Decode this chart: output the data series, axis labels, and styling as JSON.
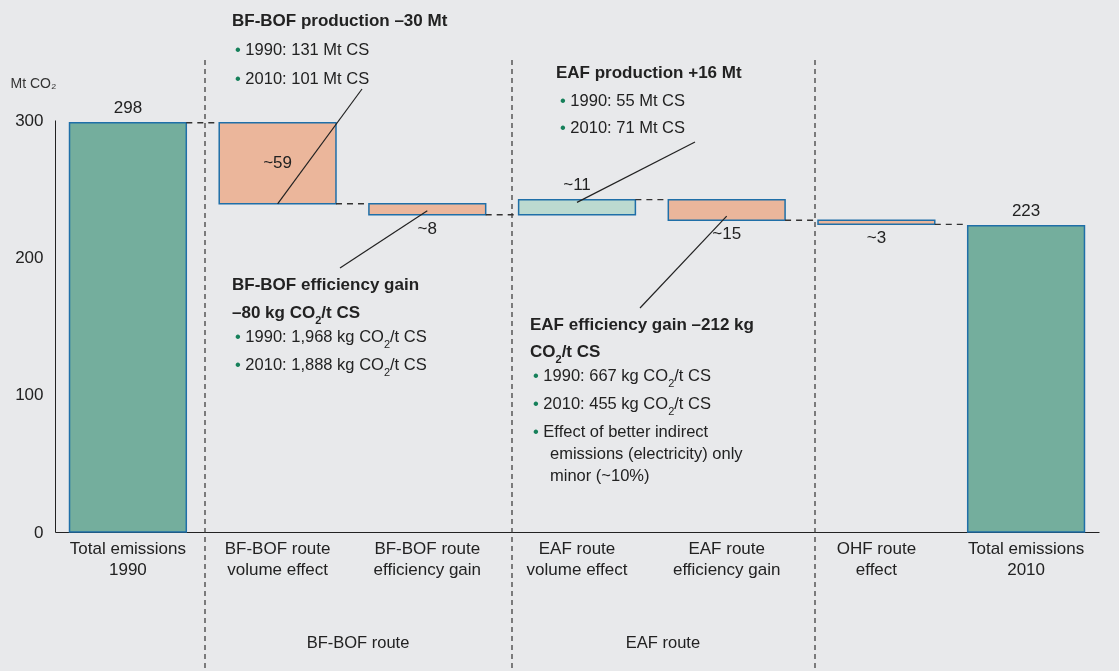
{
  "chart_data": {
    "type": "bar",
    "categories": [
      "Total emissions 1990",
      "BF-BOF route volume effect",
      "BF-BOF route efficiency gain",
      "EAF route volume effect",
      "EAF route efficiency gain",
      "OHF route effect",
      "Total emissions 2010"
    ],
    "values": [
      298,
      -59,
      -8,
      11,
      -15,
      -3,
      223
    ],
    "base": [
      0,
      298,
      239,
      231,
      242,
      227,
      0
    ],
    "colors": [
      "#74ae9d",
      "#ebb69b",
      "#ebb69b",
      "#bcdad0",
      "#ebb69b",
      "#ebb69b",
      "#74ae9d"
    ],
    "value_labels": [
      "298",
      "~59",
      "~8",
      "~11",
      "~15",
      "~3",
      "223"
    ],
    "ylabel": "Mt CO₂",
    "ylim": [
      0,
      300
    ],
    "yticks": [
      0,
      100,
      200,
      300
    ],
    "grid": false,
    "legend": false,
    "annotations": [
      "BF-BOF production –30 Mt",
      "• 1990: 131 Mt CS",
      {
        "text": "• 2010: 101 Mt CS",
        "x": "BF-BOF route volume effect",
        "y": 239
      },
      "EAF production +16 Mt",
      "• 1990: 55 Mt CS",
      {
        "text": "• 2010: 71 Mt CS",
        "x": "EAF route volume effect",
        "y": 240
      },
      {
        "text": "BF-BOF efficiency gain",
        "x": "BF-BOF route efficiency gain",
        "y": 234
      },
      "–80 kg CO$_{2}$/t CS",
      "• 1990: 1,968 kg CO$_{2}$/t CS",
      "• 2010: 1,888 kg CO$_{2}$/t CS",
      {
        "text": "EAF efficiency gain –212 kg",
        "x": "EAF route efficiency gain",
        "y": 230
      },
      "CO$_{2}$/t CS",
      "• 1990: 667 kg CO$_{2}$/t CS",
      "• 2010: 455 kg CO$_{2}$/t CS",
      "• Effect of better indirect",
      "emissions (electricity) only",
      "minor (~10%)",
      "BF-BOF route",
      "EAF route"
    ]
  }
}
